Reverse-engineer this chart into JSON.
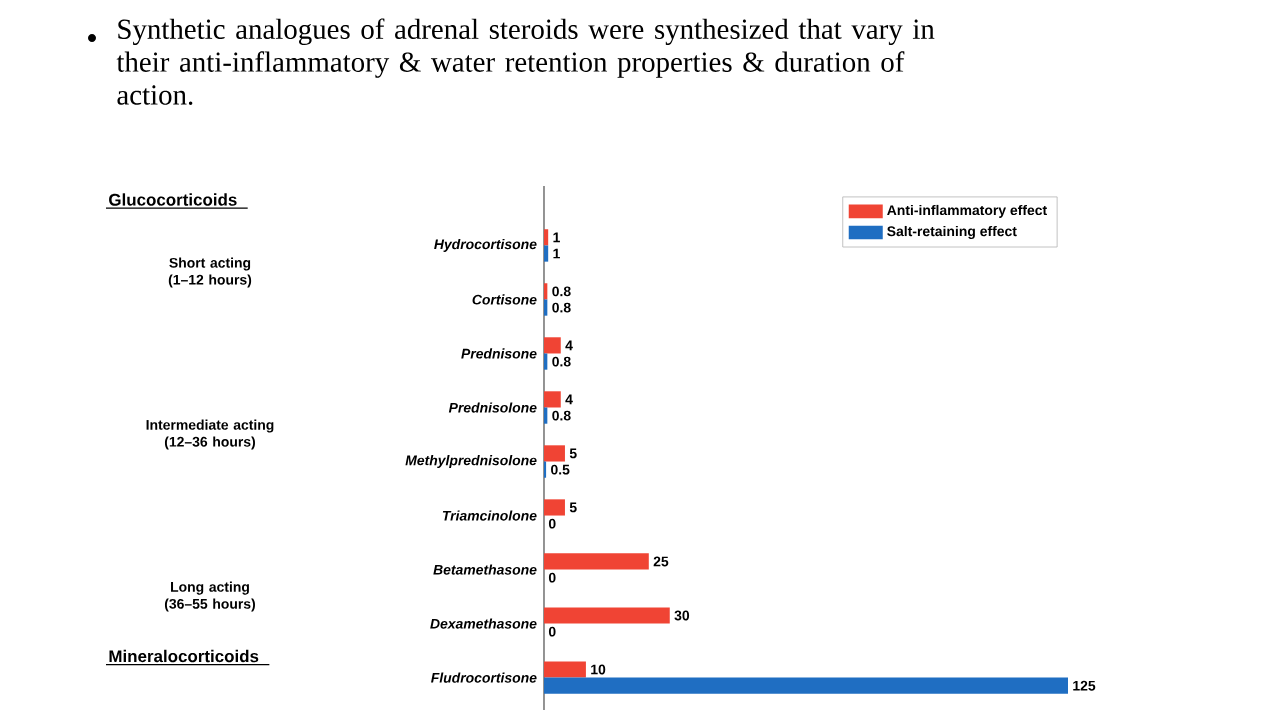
{
  "chart_data": {
    "type": "bar",
    "orientation": "horizontal",
    "title": "Synthetic analogues of adrenal steroids were synthesized that vary in their anti-inflammatory & water retention properties & duration of action.",
    "categories": [
      "Hydrocortisone",
      "Cortisone",
      "Prednisone",
      "Prednisolone",
      "Methylprednisolone",
      "Triamcinolone",
      "Betamethasone",
      "Dexamethasone",
      "Fludrocortisone"
    ],
    "series": [
      {
        "name": "Anti-inflammatory effect",
        "color": "#f04434",
        "values": [
          1,
          0.8,
          4,
          4,
          5,
          5,
          25,
          30,
          10
        ]
      },
      {
        "name": "Salt-retaining effect",
        "color": "#1f6ec2",
        "values": [
          1,
          0.8,
          0.8,
          0.8,
          0.5,
          0,
          0,
          0,
          125
        ]
      }
    ],
    "xlim": [
      0,
      125
    ],
    "tick_labels": "y",
    "data_labels": true,
    "legend": "top right",
    "annotations": [
      "Glucocorticoids",
      "Short acting (1–12 hours)",
      "Intermediate acting (12–36 hours)",
      "Long acting (36–55 hours)",
      "Mineralocorticoids"
    ]
  }
}
